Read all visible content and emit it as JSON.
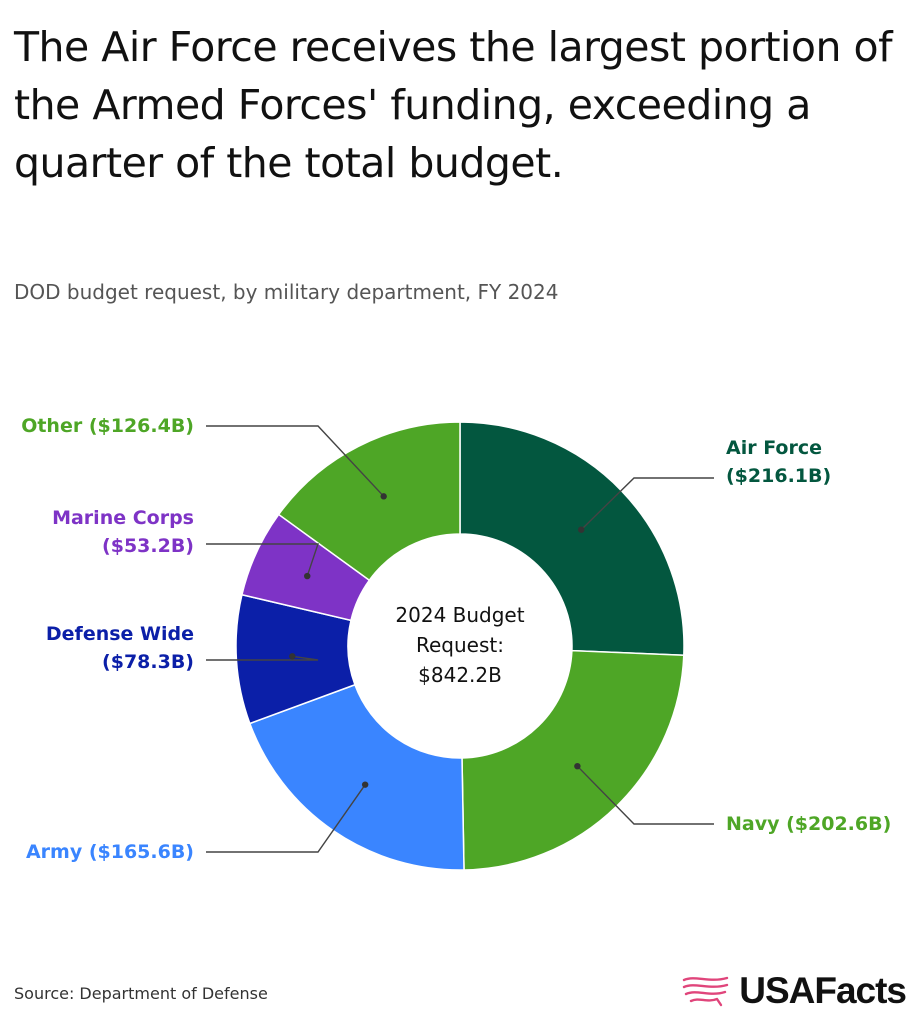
{
  "header": {
    "title": "The Air Force receives the largest portion of the Armed Forces' funding, exceeding a quarter of the total budget.",
    "subtitle": "DOD budget request, by military department, FY 2024"
  },
  "chart_data": {
    "type": "pie",
    "variant": "donut",
    "center_label": [
      "2024 Budget",
      "Request:",
      "$842.2B"
    ],
    "total": 842.2,
    "unit": "$B",
    "slices": [
      {
        "name": "Air Force",
        "value": 216.1,
        "label_lines": [
          "Air Force",
          "($216.1B)"
        ],
        "color": "#03573f",
        "side": "right"
      },
      {
        "name": "Navy",
        "value": 202.6,
        "label_lines": [
          "Navy ($202.6B)"
        ],
        "color": "#4ea626",
        "side": "right"
      },
      {
        "name": "Army",
        "value": 165.6,
        "label_lines": [
          "Army ($165.6B)"
        ],
        "color": "#3a85ff",
        "side": "left"
      },
      {
        "name": "Defense Wide",
        "value": 78.3,
        "label_lines": [
          "Defense Wide",
          "($78.3B)"
        ],
        "color": "#0b1fa8",
        "side": "left"
      },
      {
        "name": "Marine Corps",
        "value": 53.2,
        "label_lines": [
          "Marine Corps",
          "($53.2B)"
        ],
        "color": "#7e33c6",
        "side": "left"
      },
      {
        "name": "Other",
        "value": 126.4,
        "label_lines": [
          "Other ($126.4B)"
        ],
        "color": "#4ea626",
        "side": "left"
      }
    ]
  },
  "footer": {
    "source": "Source: Department of Defense",
    "brand": "USAFacts",
    "logo_icon": "us-map-flag-icon",
    "logo_color": "#e0457b"
  }
}
